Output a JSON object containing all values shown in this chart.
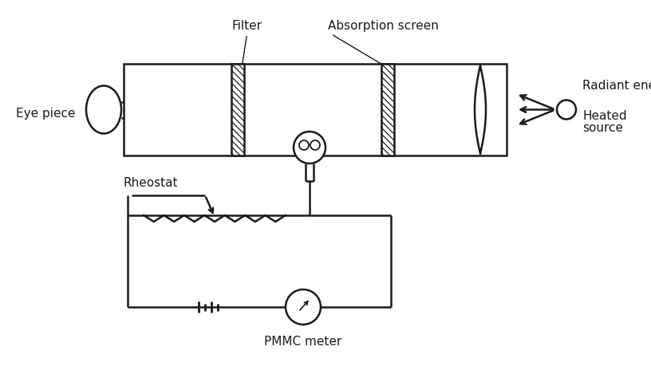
{
  "bg_color": "#ffffff",
  "line_color": "#1a1a1a",
  "labels": {
    "filter": "Filter",
    "absorption": "Absorption screen",
    "eyepiece": "Eye piece",
    "radiant": "Radiant energy",
    "heated": "Heated\nsource",
    "rheostat": "Rheostat",
    "pmmc": "PMMC meter"
  },
  "figsize": [
    8.16,
    4.59
  ],
  "dpi": 100
}
